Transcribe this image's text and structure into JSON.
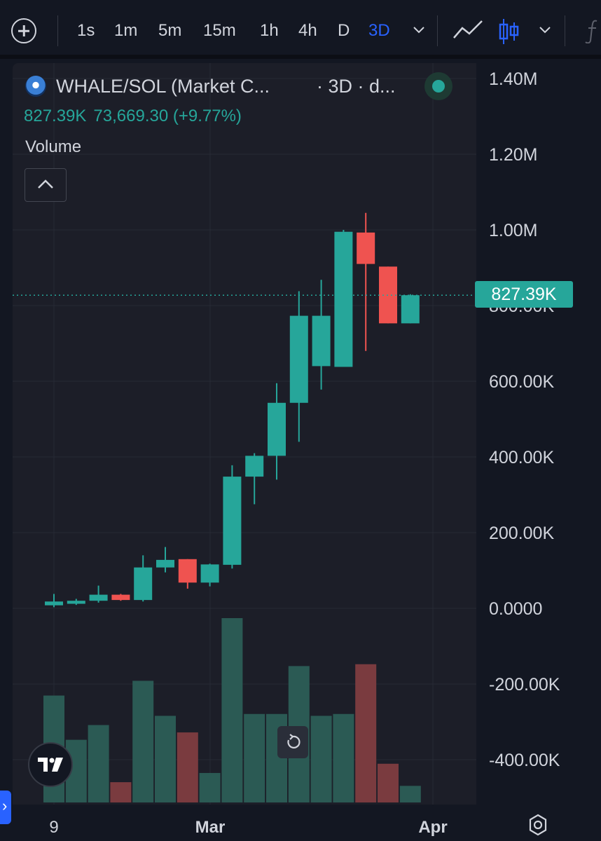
{
  "toolbar": {
    "timeframes": [
      "1s",
      "1m",
      "5m",
      "15m",
      "1h",
      "4h",
      "D",
      "3D"
    ],
    "active_timeframe": "3D"
  },
  "legend": {
    "symbol": "WHALE/SOL (Market C...",
    "extra": "· 3D · d...",
    "last_value": "827.39K",
    "change": "73,669.30 (+9.77%)",
    "indicator": "Volume"
  },
  "price_tag": "827.39K",
  "colors": {
    "up": "#26a69a",
    "down": "#ef5350",
    "background": "#1c1e28",
    "accent": "#2962ff"
  },
  "chart_data": {
    "type": "candlestick",
    "y_axis": {
      "ticks": [
        "1.40M",
        "1.20M",
        "1.00M",
        "800.00K",
        "600.00K",
        "400.00K",
        "200.00K",
        "0.0000",
        "-200.00K",
        "-400.00K"
      ],
      "values": [
        1400000,
        1200000,
        1000000,
        800000,
        600000,
        400000,
        200000,
        0,
        -200000,
        -400000
      ],
      "range": [
        -520000,
        1420000
      ]
    },
    "x_axis": {
      "labels": [
        "9",
        "Mar",
        "Apr"
      ]
    },
    "last_price": 827390,
    "candles": [
      {
        "o": 8000,
        "h": 38000,
        "l": 3000,
        "c": 18000
      },
      {
        "o": 12000,
        "h": 25000,
        "l": 9000,
        "c": 20000
      },
      {
        "o": 20000,
        "h": 60000,
        "l": 15000,
        "c": 36000
      },
      {
        "o": 36000,
        "h": 38000,
        "l": 20000,
        "c": 22000
      },
      {
        "o": 22000,
        "h": 140000,
        "l": 18000,
        "c": 108000
      },
      {
        "o": 108000,
        "h": 162000,
        "l": 95000,
        "c": 128000
      },
      {
        "o": 130000,
        "h": 130000,
        "l": 52000,
        "c": 68000
      },
      {
        "o": 68000,
        "h": 118000,
        "l": 58000,
        "c": 116000
      },
      {
        "o": 115000,
        "h": 378000,
        "l": 105000,
        "c": 348000
      },
      {
        "o": 348000,
        "h": 410000,
        "l": 275000,
        "c": 403000
      },
      {
        "o": 403000,
        "h": 595000,
        "l": 340000,
        "c": 543000
      },
      {
        "o": 543000,
        "h": 838000,
        "l": 440000,
        "c": 773000
      },
      {
        "o": 640000,
        "h": 868000,
        "l": 578000,
        "c": 773000
      },
      {
        "o": 638000,
        "h": 1000000,
        "l": 640000,
        "c": 995000
      },
      {
        "o": 993000,
        "h": 1045000,
        "l": 680000,
        "c": 910000
      },
      {
        "o": 903000,
        "h": 903000,
        "l": 753000,
        "c": 753000
      },
      {
        "o": 753000,
        "h": 830000,
        "l": 753000,
        "c": 827390
      }
    ],
    "volume": [
      0.58,
      0.34,
      0.42,
      0.11,
      0.66,
      0.47,
      0.38,
      0.16,
      1.0,
      0.48,
      0.48,
      0.74,
      0.47,
      0.48,
      0.75,
      0.21,
      0.09
    ]
  }
}
